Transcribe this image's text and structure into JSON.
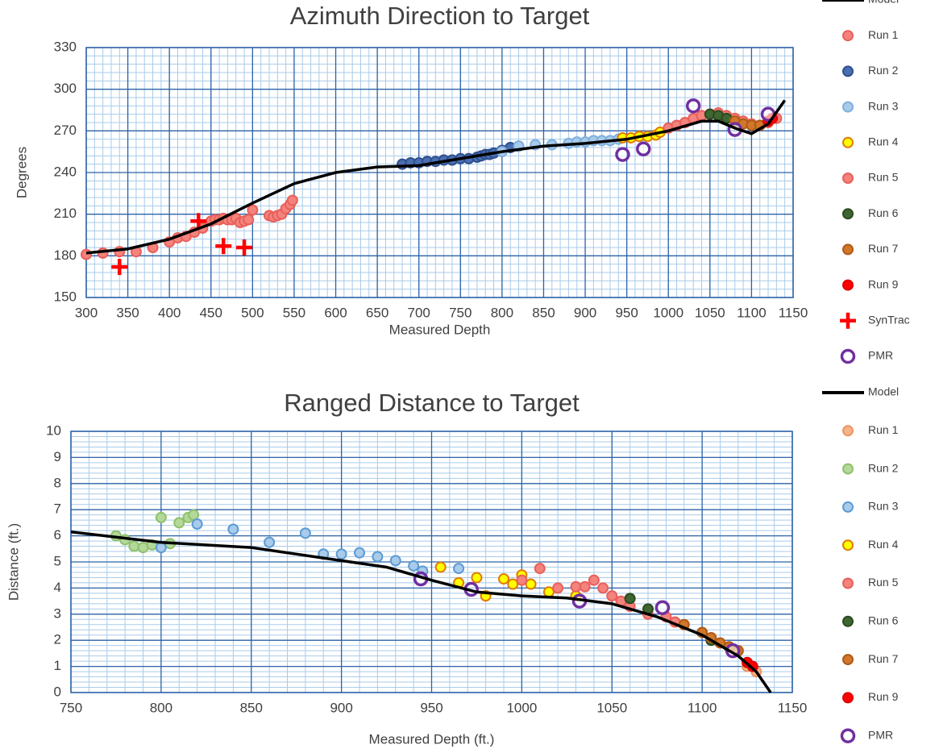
{
  "chart_data": [
    {
      "type": "scatter",
      "title": "Azimuth Direction to Target",
      "xlabel": "Measured Depth",
      "ylabel": "Degrees",
      "xlim": [
        300,
        1150
      ],
      "ylim": [
        150,
        330
      ],
      "xticks": [
        300,
        350,
        400,
        450,
        500,
        550,
        600,
        650,
        700,
        750,
        800,
        850,
        900,
        950,
        1000,
        1050,
        1100,
        1150
      ],
      "yticks": [
        150,
        180,
        210,
        240,
        270,
        300,
        330
      ],
      "grid": true,
      "minor_grid": {
        "x": 10,
        "y": 6
      },
      "legend": "right",
      "series": [
        {
          "name": "Model",
          "marker": "line",
          "color": "#000000",
          "x": [
            300,
            350,
            400,
            450,
            500,
            550,
            600,
            650,
            700,
            750,
            800,
            850,
            900,
            950,
            1000,
            1040,
            1060,
            1080,
            1100,
            1120,
            1140
          ],
          "values": [
            182,
            185,
            192,
            203,
            218,
            232,
            240,
            244,
            245,
            250,
            255,
            259,
            261,
            264,
            270,
            277,
            277,
            272,
            268,
            275,
            292
          ]
        },
        {
          "name": "Run 1",
          "marker": "circle",
          "color": "#f4837d",
          "edge_color": "#e8605a",
          "x": [
            300,
            320,
            340,
            360,
            380,
            400,
            410,
            420,
            430,
            440,
            450,
            455,
            460,
            465,
            470,
            475,
            480,
            485,
            490,
            495,
            500,
            520,
            525,
            530,
            535,
            540,
            545,
            548
          ],
          "values": [
            181,
            182,
            183,
            183,
            186,
            190,
            193,
            194,
            197,
            200,
            205,
            206,
            206,
            207,
            206,
            206,
            207,
            204,
            205,
            206,
            213,
            209,
            208,
            209,
            210,
            214,
            217,
            220
          ]
        },
        {
          "name": "Run 2",
          "marker": "circle",
          "color": "#4a6fb0",
          "edge_color": "#2f4f8f",
          "x": [
            680,
            690,
            700,
            710,
            720,
            730,
            740,
            750,
            760,
            770,
            775,
            780,
            785,
            790,
            800,
            810,
            820
          ],
          "values": [
            246,
            247,
            247,
            248,
            248,
            249,
            249,
            250,
            250,
            251,
            252,
            253,
            253,
            254,
            256,
            258,
            259
          ]
        },
        {
          "name": "Run 3",
          "marker": "circle",
          "color": "#a9cbea",
          "edge_color": "#7fb0de",
          "x": [
            800,
            820,
            840,
            860,
            880,
            890,
            900,
            910,
            920,
            930,
            940
          ],
          "values": [
            255,
            259,
            260,
            260,
            261,
            262,
            262,
            263,
            263,
            263,
            264
          ]
        },
        {
          "name": "Run 4",
          "marker": "circle",
          "color": "#ffff00",
          "edge_color": "#e07b00",
          "x": [
            945,
            955,
            965,
            975,
            985,
            990
          ],
          "values": [
            265,
            265,
            266,
            266,
            267,
            269
          ]
        },
        {
          "name": "Run 5",
          "marker": "circle",
          "color": "#f4837d",
          "edge_color": "#e8605a",
          "x": [
            1000,
            1010,
            1020,
            1030,
            1040,
            1050,
            1060,
            1070,
            1080,
            1090,
            1100,
            1110,
            1120,
            1130
          ],
          "values": [
            272,
            274,
            276,
            279,
            281,
            282,
            283,
            281,
            279,
            277,
            275,
            274,
            276,
            279
          ]
        },
        {
          "name": "Run 6",
          "marker": "circle",
          "color": "#3f6630",
          "edge_color": "#2c4a21",
          "x": [
            1050,
            1060,
            1070
          ],
          "values": [
            282,
            281,
            279
          ]
        },
        {
          "name": "Run 7",
          "marker": "circle",
          "color": "#d0772c",
          "edge_color": "#b05a14",
          "x": [
            1080,
            1090,
            1100,
            1110
          ],
          "values": [
            277,
            275,
            274,
            274
          ]
        },
        {
          "name": "Run 9",
          "marker": "circle",
          "color": "#ff0000",
          "edge_color": "#e00000",
          "x": [
            1120,
            1125
          ],
          "values": [
            277,
            279
          ]
        },
        {
          "name": "SynTrac",
          "marker": "plus",
          "color": "#ff0000",
          "x": [
            340,
            435,
            465,
            490
          ],
          "values": [
            172,
            205,
            187,
            186
          ]
        },
        {
          "name": "PMR",
          "marker": "ring",
          "color": "#7030a0",
          "x": [
            945,
            970,
            1030,
            1080,
            1120
          ],
          "values": [
            253,
            257,
            288,
            271,
            282
          ]
        }
      ]
    },
    {
      "type": "scatter",
      "title": "Ranged Distance to Target",
      "xlabel": "Measured Depth (ft.)",
      "ylabel": "Distance (ft.)",
      "xlim": [
        750,
        1150
      ],
      "ylim": [
        0,
        10
      ],
      "xticks": [
        750,
        800,
        850,
        900,
        950,
        1000,
        1050,
        1100,
        1150
      ],
      "yticks": [
        0,
        1,
        2,
        3,
        4,
        5,
        6,
        7,
        8,
        9,
        10
      ],
      "grid": true,
      "minor_grid": {
        "x": 10,
        "y": 0.2
      },
      "legend": "right",
      "series": [
        {
          "name": "Model",
          "marker": "line",
          "color": "#000000",
          "x": [
            750,
            800,
            850,
            900,
            925,
            950,
            975,
            1000,
            1025,
            1050,
            1075,
            1100,
            1120,
            1130,
            1138
          ],
          "values": [
            6.15,
            5.75,
            5.55,
            5.05,
            4.8,
            4.3,
            3.85,
            3.7,
            3.62,
            3.4,
            2.9,
            2.2,
            1.4,
            0.8,
            0
          ]
        },
        {
          "name": "Run 1",
          "marker": "circle",
          "color": "#f6b48a",
          "edge_color": "#ee9560",
          "x": [
            1125,
            1130
          ],
          "values": [
            1.0,
            0.8
          ]
        },
        {
          "name": "Run 2",
          "marker": "circle",
          "color": "#b4d89a",
          "edge_color": "#8fc16c",
          "x": [
            775,
            780,
            785,
            790,
            795,
            800,
            805,
            810,
            815,
            818
          ],
          "values": [
            6.0,
            5.85,
            5.6,
            5.55,
            5.65,
            6.7,
            5.7,
            6.5,
            6.7,
            6.8
          ]
        },
        {
          "name": "Run 3",
          "marker": "circle",
          "color": "#a9cbea",
          "edge_color": "#5b9bd5",
          "x": [
            800,
            820,
            840,
            860,
            880,
            890,
            900,
            910,
            920,
            930,
            940,
            945,
            965
          ],
          "values": [
            5.55,
            6.45,
            6.25,
            5.75,
            6.1,
            5.3,
            5.3,
            5.35,
            5.2,
            5.05,
            4.85,
            4.65,
            4.75
          ]
        },
        {
          "name": "Run 4",
          "marker": "circle",
          "color": "#ffff00",
          "edge_color": "#e07b00",
          "x": [
            955,
            965,
            975,
            980,
            990,
            995,
            1000,
            1005,
            1015,
            1030
          ],
          "values": [
            4.8,
            4.2,
            4.4,
            3.7,
            4.35,
            4.15,
            4.5,
            4.15,
            3.85,
            3.7
          ]
        },
        {
          "name": "Run 5",
          "marker": "circle",
          "color": "#f4837d",
          "edge_color": "#e8605a",
          "x": [
            1000,
            1010,
            1020,
            1030,
            1035,
            1040,
            1045,
            1050,
            1055,
            1060,
            1070,
            1080,
            1085
          ],
          "values": [
            4.3,
            4.75,
            4.0,
            4.05,
            4.05,
            4.3,
            4.0,
            3.7,
            3.5,
            3.3,
            3.0,
            2.9,
            2.7
          ]
        },
        {
          "name": "Run 6",
          "marker": "circle",
          "color": "#3f6630",
          "edge_color": "#2c4a21",
          "x": [
            1060,
            1070,
            1105
          ],
          "values": [
            3.6,
            3.2,
            2.0
          ]
        },
        {
          "name": "Run 7",
          "marker": "circle",
          "color": "#d0772c",
          "edge_color": "#b05a14",
          "x": [
            1090,
            1100,
            1105,
            1110,
            1115,
            1120
          ],
          "values": [
            2.6,
            2.3,
            2.1,
            1.9,
            1.75,
            1.6
          ]
        },
        {
          "name": "Run 9",
          "marker": "circle",
          "color": "#ff0000",
          "edge_color": "#e00000",
          "x": [
            1125,
            1128
          ],
          "values": [
            1.15,
            1.0
          ]
        },
        {
          "name": "PMR",
          "marker": "ring",
          "color": "#7030a0",
          "x": [
            944,
            972,
            1032,
            1078,
            1117
          ],
          "values": [
            4.35,
            3.95,
            3.5,
            3.25,
            1.6
          ]
        }
      ]
    }
  ]
}
